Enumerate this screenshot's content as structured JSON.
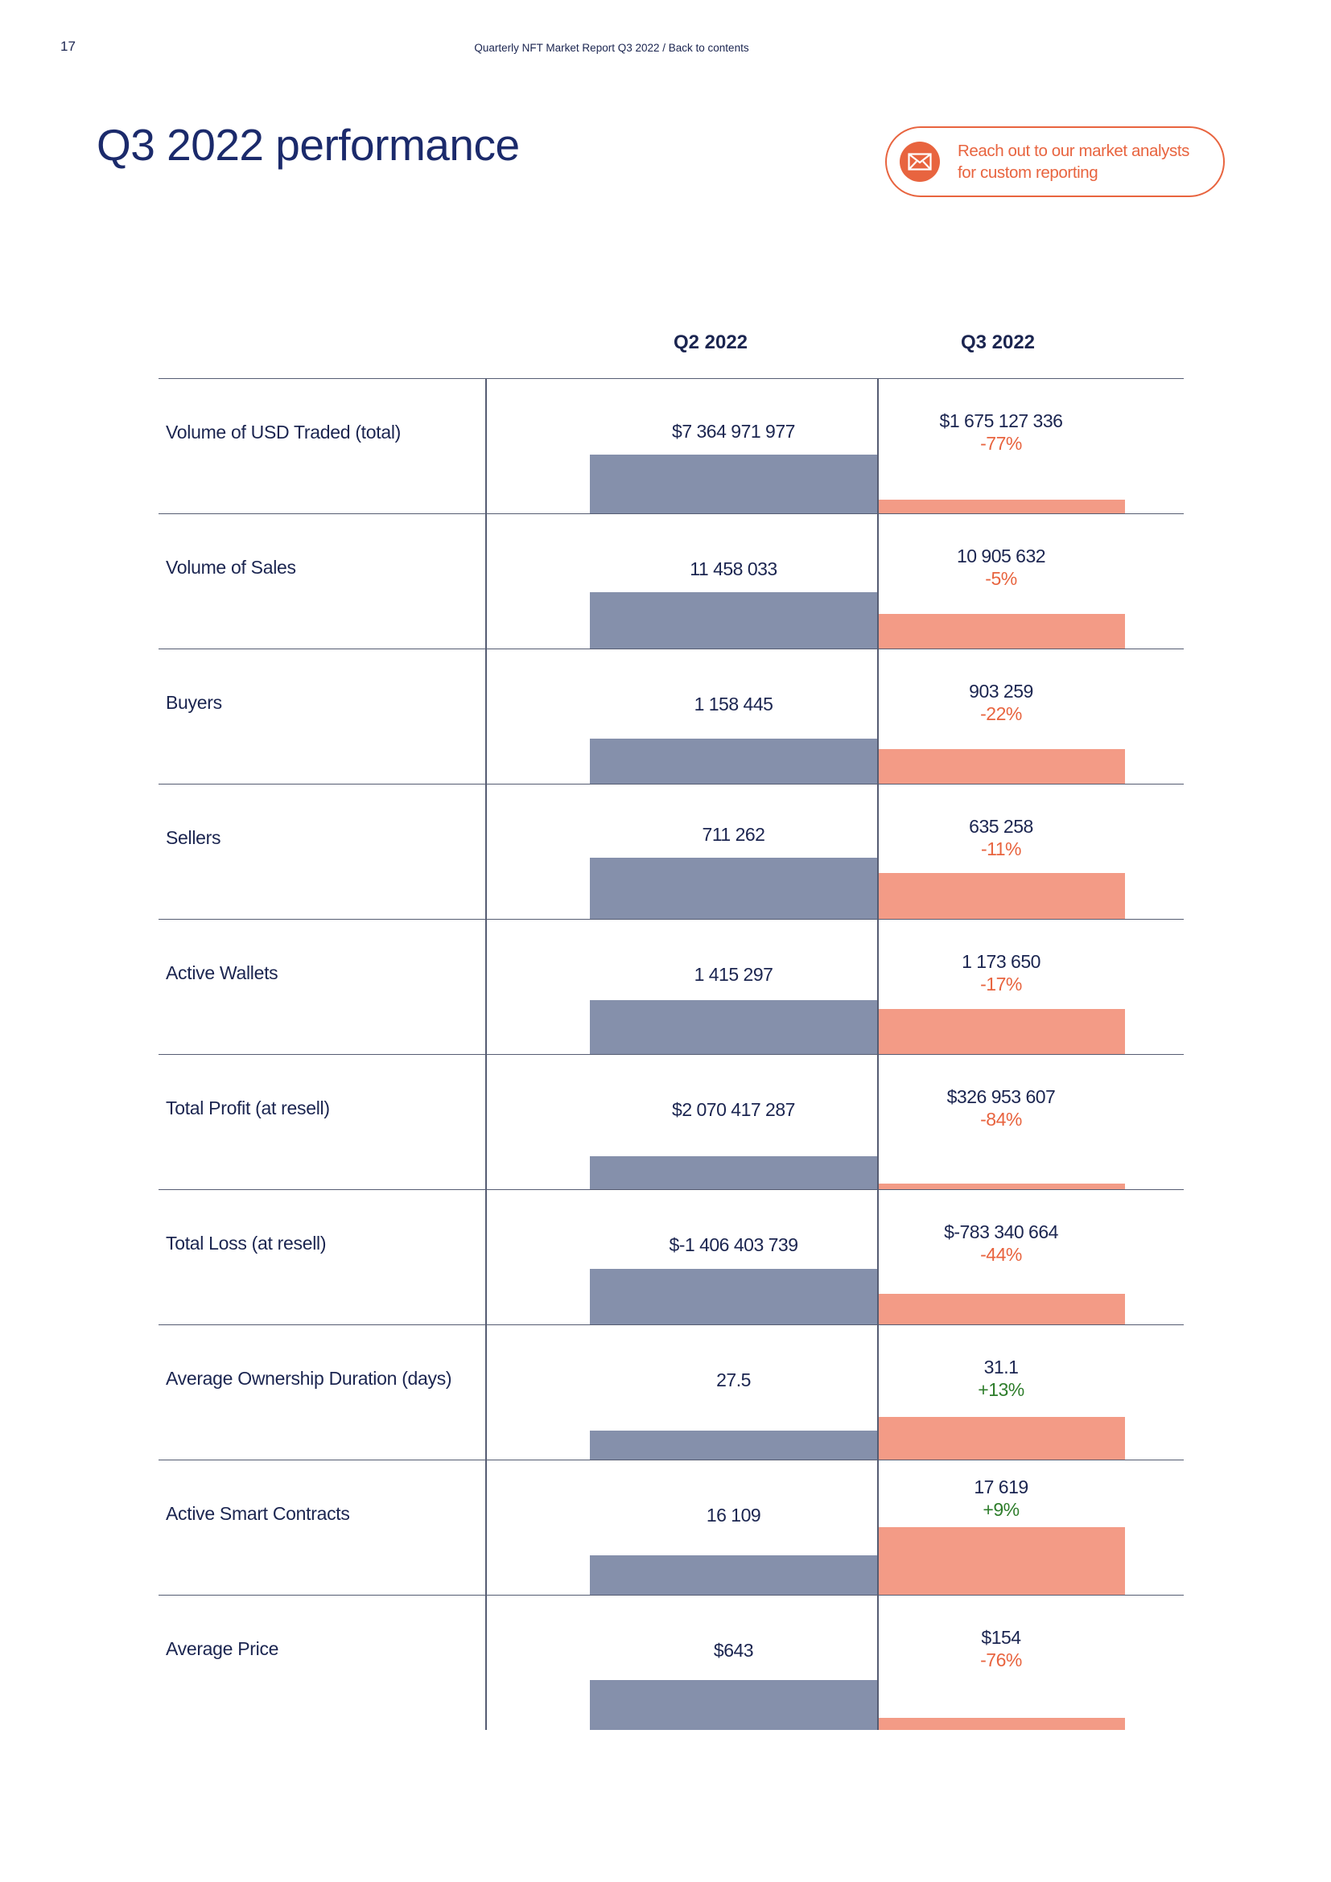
{
  "page": {
    "number": "17",
    "header": "Quarterly NFT Market Report Q3 2022 / Back to contents",
    "header_report": "Quarterly NFT Market Report Q3 2022",
    "header_sep": " / ",
    "header_link": "Back to contents",
    "title": "Q3 2022 performance"
  },
  "cta": {
    "line1": "Reach out to our market analysts",
    "line2": "for custom reporting",
    "icon": "envelope-icon"
  },
  "colors": {
    "q2_bar": "#8590ab",
    "q3_bar": "#f39b86",
    "accent": "#e8643f",
    "negative": "#e8643f",
    "positive": "#2e7d2b",
    "text": "#1b2550"
  },
  "columns": {
    "q2": "Q2 2022",
    "q3": "Q3 2022"
  },
  "rows": [
    {
      "label": "Volume of USD Traded (total)",
      "q2": "$7 364 971 977",
      "q3": "$1 675 127 336",
      "change": "-77%",
      "trend": "neg",
      "q2_level": 0.52,
      "q3_level": 0.12
    },
    {
      "label": "Volume of Sales",
      "q2": "11 458 033",
      "q3": "10 905 632",
      "change": "-5%",
      "trend": "neg",
      "q2_level": 0.5,
      "q3_level": 0.31
    },
    {
      "label": "Buyers",
      "q2": "1 158 445",
      "q3": "903 259",
      "change": "-22%",
      "trend": "neg",
      "q2_level": 0.4,
      "q3_level": 0.31
    },
    {
      "label": "Sellers",
      "q2": "711 262",
      "q3": "635 258",
      "change": "-11%",
      "trend": "neg",
      "q2_level": 0.54,
      "q3_level": 0.41
    },
    {
      "label": "Active Wallets",
      "q2": "1 415 297",
      "q3": "1 173 650",
      "change": "-17%",
      "trend": "neg",
      "q2_level": 0.48,
      "q3_level": 0.4
    },
    {
      "label": "Total Profit (at resell)",
      "q2": "$2 070 417 287",
      "q3": "$326 953 607",
      "change": "-84%",
      "trend": "neg",
      "q2_level": 0.29,
      "q3_level": 0.05
    },
    {
      "label": "Total Loss (at resell)",
      "q2": "$-1 406 403 739",
      "q3": "$-783 340 664",
      "change": "-44%",
      "trend": "neg",
      "q2_level": 0.49,
      "q3_level": 0.27
    },
    {
      "label": "Average Ownership Duration (days)",
      "q2": "27.5",
      "q3": "31.1",
      "change": "+13%",
      "trend": "pos",
      "q2_level": 0.26,
      "q3_level": 0.38
    },
    {
      "label": "Active Smart Contracts",
      "q2": "16 109",
      "q3": "17 619",
      "change": "+9%",
      "trend": "pos",
      "q2_level": 0.35,
      "q3_level": 0.6
    },
    {
      "label": "Average Price",
      "q2": "$643",
      "q3": "$154",
      "change": "-76%",
      "trend": "neg",
      "q2_level": 0.44,
      "q3_level": 0.11
    }
  ]
}
